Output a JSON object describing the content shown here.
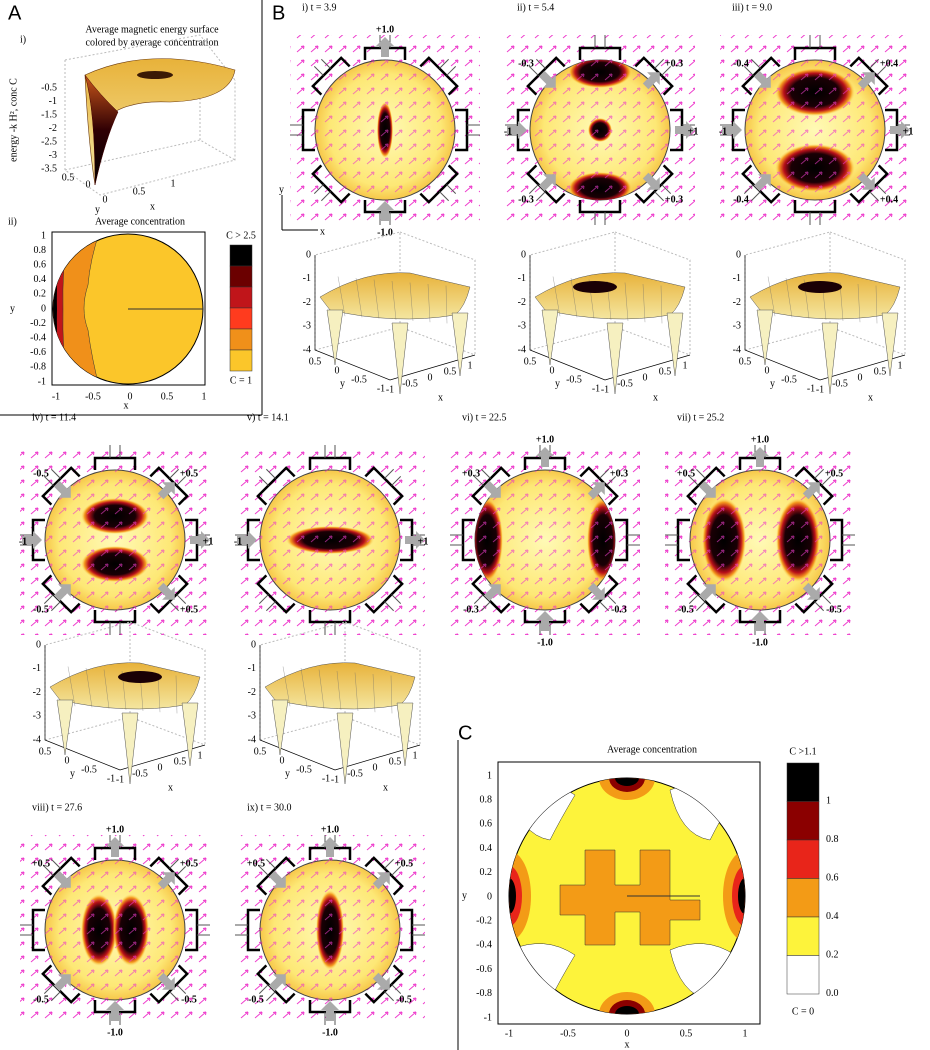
{
  "panel_labels": {
    "a": "A",
    "b": "B",
    "c": "C"
  },
  "panel_a": {
    "i": {
      "label": "i)",
      "title_lines": [
        "Average magnetic energy surface",
        "colored by average concentration"
      ],
      "z_label": "energy -k H², conc C",
      "zticks": [
        "-0.5",
        "-1",
        "-1.5",
        "-2",
        "-2.5",
        "-3",
        "-3.5"
      ],
      "yticks": [
        "0.5",
        "0"
      ],
      "xticks": [
        "0",
        "0.5",
        "1"
      ],
      "x": "x",
      "y": "y"
    },
    "ii": {
      "label": "ii)",
      "title": "Average concentration",
      "yticks": [
        "1",
        "0.8",
        "0.6",
        "0.4",
        "0.2",
        "0",
        "-0.2",
        "-0.4",
        "-0.6",
        "-0.8",
        "-1"
      ],
      "xticks": [
        "-1",
        "-0.5",
        "0",
        "0.5",
        "1"
      ],
      "x": "x",
      "y": "y",
      "colorbar_top": "C > 2.5",
      "colorbar_bottom": "C = 1"
    }
  },
  "panel_b": {
    "axes": {
      "x": "x",
      "y": "y"
    },
    "snapshots": [
      {
        "title": "i) t = 3.9",
        "fields": {
          "top": "+1.0",
          "bottom": "-1.0"
        }
      },
      {
        "title": "ii) t = 5.4",
        "fields": {
          "tl": "-0.3",
          "tr": "+0.3",
          "left": "-1",
          "right": "+1",
          "bl": "-0.3",
          "br": "+0.3"
        }
      },
      {
        "title": "iii) t = 9.0",
        "fields": {
          "tl": "-0.4",
          "tr": "+0.4",
          "left": "-1",
          "right": "+1",
          "bl": "-0.4",
          "br": "+0.4"
        }
      },
      {
        "title": "iv) t = 11.4",
        "fields": {
          "tl": "-0.5",
          "tr": "+0.5",
          "left": "-1",
          "right": "+1",
          "bl": "-0.5",
          "br": "+0.5"
        }
      },
      {
        "title": "v) t = 14.1",
        "fields": {
          "left": "-1",
          "right": "+1"
        }
      },
      {
        "title": "vi) t = 22.5",
        "fields": {
          "top": "+1.0",
          "tl": "+0.3",
          "tr": "+0.3",
          "bl": "-0.3",
          "br": "-0.3",
          "bottom": "-1.0"
        }
      },
      {
        "title": "vii) t = 25.2",
        "fields": {
          "top": "+1.0",
          "tl": "+0.5",
          "tr": "+0.5",
          "bl": "-0.5",
          "br": "-0.5",
          "bottom": "-1.0"
        }
      },
      {
        "title": "viii) t = 27.6",
        "fields": {
          "top": "+1.0",
          "tl": "+0.5",
          "tr": "+0.5",
          "bl": "-0.5",
          "br": "-0.5",
          "bottom": "-1.0"
        }
      },
      {
        "title": "ix) t = 30.0",
        "fields": {
          "top": "+1.0",
          "tl": "+0.5",
          "tr": "+0.5",
          "bl": "-0.5",
          "br": "-0.5",
          "bottom": "-1.0"
        }
      }
    ],
    "surface_axes": {
      "zticks": [
        "0",
        "-1",
        "-2",
        "-3",
        "-4"
      ],
      "xticks": [
        "-1",
        "-0.5",
        "0",
        "0.5",
        "1"
      ],
      "yticks": [
        "0.5",
        "0",
        "-0.5",
        "-1"
      ],
      "x": "x",
      "y": "y"
    }
  },
  "panel_c": {
    "title": "Average concentration",
    "yticks": [
      "1",
      "0.8",
      "0.6",
      "0.4",
      "0.2",
      "0",
      "-0.2",
      "-0.4",
      "-0.6",
      "-0.8",
      "-1"
    ],
    "xticks": [
      "-1",
      "-0.5",
      "0",
      "0.5",
      "1"
    ],
    "x": "x",
    "y": "y",
    "colorbar_top": "C >1.1",
    "colorbar_ticks": [
      "1",
      "0.8",
      "0.6",
      "0.4",
      "0.2",
      "0.0"
    ],
    "colorbar_bottom": "C = 0"
  }
}
